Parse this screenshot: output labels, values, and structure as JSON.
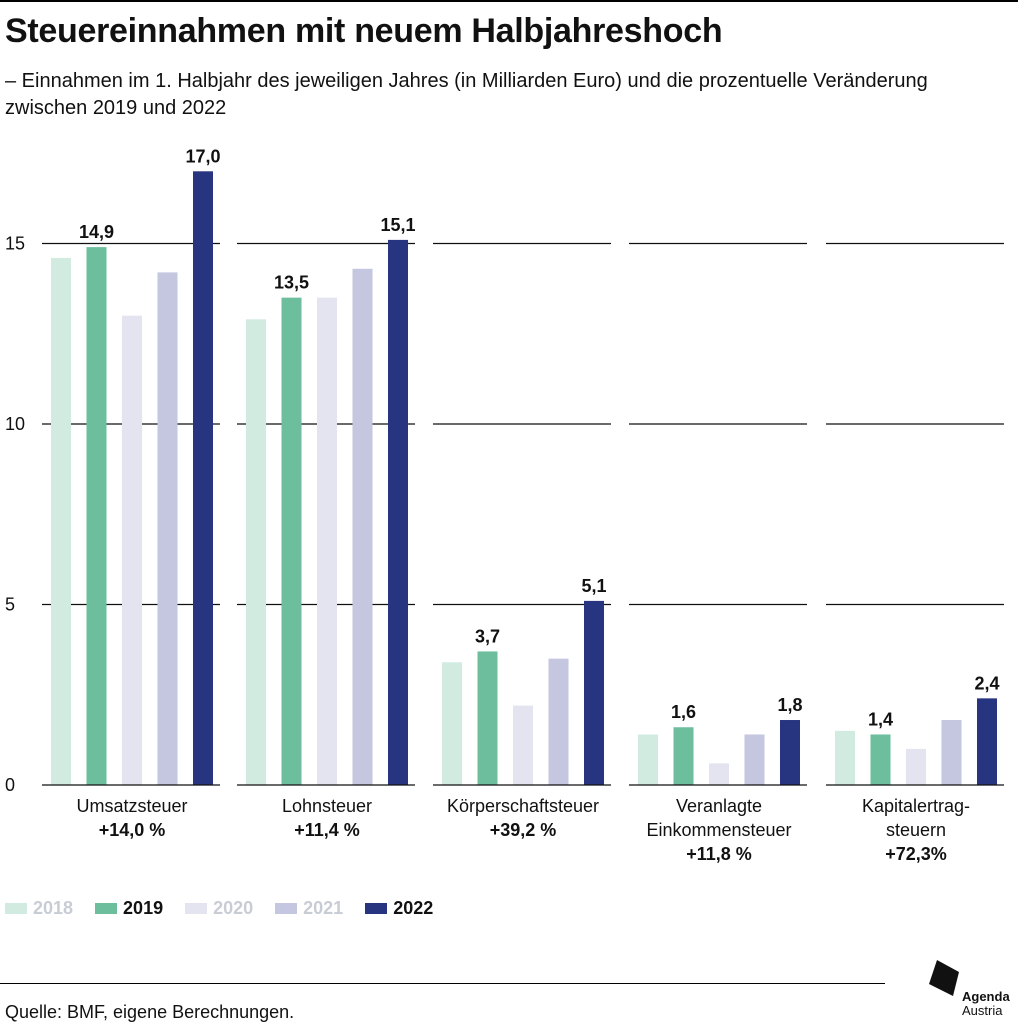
{
  "title": "Steuereinnahmen mit neuem Halbjahreshoch",
  "subtitle": "– Einnahmen im 1. Halbjahr des jeweiligen Jahres (in Milliarden Euro) und die prozentuelle Veränderung zwischen 2019 und 2022",
  "source": "Quelle: BMF, eigene Berechnungen.",
  "logo": {
    "line1": "Agenda",
    "line2": "Austria"
  },
  "chart_data": {
    "type": "bar",
    "ylim": [
      0,
      17
    ],
    "yticks": [
      0,
      5,
      10,
      15
    ],
    "ytick_labels": [
      "0",
      "5",
      "10",
      "15"
    ],
    "grid": true,
    "legend_position": "bottom-left",
    "series_names": [
      "2018",
      "2019",
      "2020",
      "2021",
      "2022"
    ],
    "series_colors": [
      "#d2ebe1",
      "#6cbe9c",
      "#e3e4f0",
      "#c5c6df",
      "#27347f"
    ],
    "legend_text_colors": [
      "#c8ccd4",
      "#111111",
      "#c8ccd4",
      "#c8ccd4",
      "#111111"
    ],
    "groups": [
      {
        "label_lines": [
          "Umsatzsteuer",
          "+14,0 %"
        ],
        "values": [
          14.6,
          14.9,
          13.0,
          14.2,
          17.0
        ],
        "value_labels": [
          "",
          "14,9",
          "",
          "",
          "17,0"
        ]
      },
      {
        "label_lines": [
          "Lohnsteuer",
          "+11,4 %"
        ],
        "values": [
          12.9,
          13.5,
          13.5,
          14.3,
          15.1
        ],
        "value_labels": [
          "",
          "13,5",
          "",
          "",
          "15,1"
        ]
      },
      {
        "label_lines": [
          "Körperschaftsteuer",
          "+39,2 %"
        ],
        "values": [
          3.4,
          3.7,
          2.2,
          3.5,
          5.1
        ],
        "value_labels": [
          "",
          "3,7",
          "",
          "",
          "5,1"
        ]
      },
      {
        "label_lines": [
          "Veranlagte",
          "Einkommensteuer",
          "+11,8 %"
        ],
        "values": [
          1.4,
          1.6,
          0.6,
          1.4,
          1.8
        ],
        "value_labels": [
          "",
          "1,6",
          "",
          "",
          "1,8"
        ]
      },
      {
        "label_lines": [
          "Kapitalertrag-",
          "steuern",
          "+72,3%"
        ],
        "values": [
          1.5,
          1.4,
          1.0,
          1.8,
          2.4
        ],
        "value_labels": [
          "",
          "1,4",
          "",
          "",
          "2,4"
        ]
      }
    ]
  }
}
